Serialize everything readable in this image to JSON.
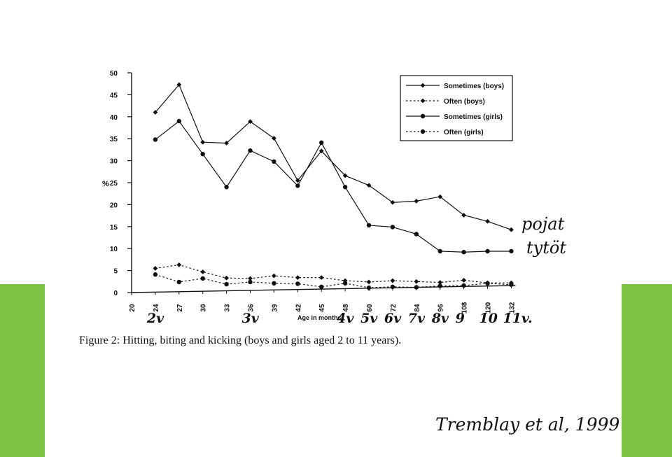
{
  "page": {
    "background": "#ffffff",
    "band_color": "#7dc242",
    "caption": "Figure 2: Hitting, biting and kicking (boys and girls aged 2 to 11 years).",
    "handwritten": {
      "boys_note": "pojat",
      "girls_note": "tytöt",
      "citation": "Tremblay et al, 1999",
      "age_labels": [
        {
          "text": "2v",
          "at_month": 24
        },
        {
          "text": "3v",
          "at_month": 36
        },
        {
          "text": "4v",
          "at_month": 48
        },
        {
          "text": "5v",
          "at_month": 60
        },
        {
          "text": "6v",
          "at_month": 72
        },
        {
          "text": "7v",
          "at_month": 84
        },
        {
          "text": "8v",
          "at_month": 96
        },
        {
          "text": "9",
          "at_month": 108
        },
        {
          "text": "10",
          "at_month": 120
        },
        {
          "text": "11v.",
          "at_month": 132
        }
      ]
    }
  },
  "chart_data": {
    "type": "line",
    "title": "",
    "xlabel": "Age in months",
    "ylabel": "%",
    "categories": [
      "20",
      "24",
      "27",
      "30",
      "33",
      "36",
      "39",
      "42",
      "45",
      "48",
      "60",
      "72",
      "84",
      "96",
      "108",
      "120",
      "132"
    ],
    "ylim": [
      0,
      50
    ],
    "yticks": [
      0,
      5,
      10,
      15,
      20,
      25,
      30,
      35,
      40,
      45,
      50
    ],
    "grid": false,
    "legend_position": "top-right",
    "series": [
      {
        "name": "Sometimes (boys)",
        "marker": "diamond",
        "dash": "solid",
        "values": [
          null,
          41,
          47.3,
          34.2,
          34.0,
          38.9,
          35.1,
          25.5,
          32.2,
          26.6,
          24.4,
          20.5,
          20.8,
          21.8,
          17.6,
          16.2,
          14.3
        ]
      },
      {
        "name": "Often (boys)",
        "marker": "diamond",
        "dash": "dotted",
        "values": [
          null,
          5.5,
          6.3,
          4.7,
          3.3,
          3.2,
          3.8,
          3.4,
          3.4,
          2.7,
          2.4,
          2.7,
          2.5,
          2.3,
          2.8,
          2.2,
          2.2
        ]
      },
      {
        "name": "Sometimes (girls)",
        "marker": "circle",
        "dash": "solid",
        "values": [
          null,
          34.8,
          39.0,
          31.5,
          24.0,
          32.3,
          29.8,
          24.3,
          34.1,
          24.0,
          15.3,
          14.9,
          13.3,
          9.4,
          9.2,
          9.4,
          9.4
        ]
      },
      {
        "name": "Often (girls)",
        "marker": "circle",
        "dash": "dotted",
        "values": [
          null,
          4.1,
          2.4,
          3.2,
          1.9,
          2.4,
          2.1,
          2.0,
          1.3,
          2.1,
          1.1,
          1.3,
          1.2,
          1.5,
          1.6,
          2.1,
          1.8
        ]
      }
    ]
  }
}
